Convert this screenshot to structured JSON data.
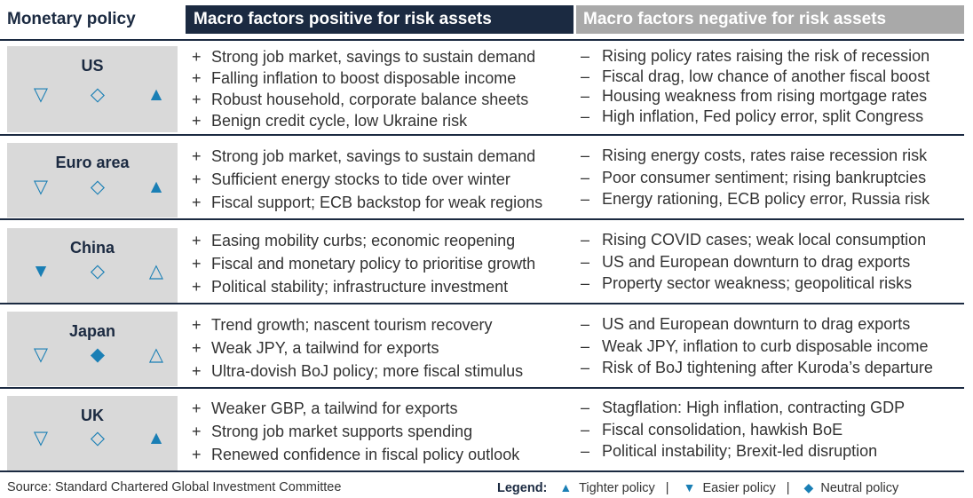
{
  "header": {
    "policy": "Monetary policy",
    "positive": "Macro factors positive for risk assets",
    "negative": "Macro factors negative for risk assets"
  },
  "symbols": {
    "easier_outline": "▽",
    "easier_filled": "▼",
    "neutral_outline": "◇",
    "neutral_filled": "◆",
    "tighter_outline": "△",
    "tighter_filled": "▲"
  },
  "rows": [
    {
      "country": "US",
      "symbols": [
        "▽",
        "◇",
        "▲"
      ],
      "positive": [
        "Strong job market, savings to sustain demand",
        "Falling inflation to boost disposable income",
        "Robust household, corporate balance sheets",
        "Benign credit cycle, low Ukraine risk"
      ],
      "negative": [
        "Rising policy rates raising the risk of recession",
        "Fiscal drag, low chance of another fiscal boost",
        "Housing weakness from rising mortgage rates",
        "High inflation, Fed policy error, split Congress"
      ]
    },
    {
      "country": "Euro area",
      "symbols": [
        "▽",
        "◇",
        "▲"
      ],
      "positive": [
        "Strong job market, savings to sustain demand",
        "Sufficient energy stocks to tide over winter",
        "Fiscal support; ECB backstop for weak regions"
      ],
      "negative": [
        "Rising energy costs, rates raise recession risk",
        "Poor consumer sentiment; rising bankruptcies",
        "Energy rationing, ECB policy error, Russia risk"
      ]
    },
    {
      "country": "China",
      "symbols": [
        "▼",
        "◇",
        "△"
      ],
      "positive": [
        "Easing mobility curbs; economic reopening",
        "Fiscal and monetary policy to prioritise growth",
        "Political stability; infrastructure investment"
      ],
      "negative": [
        "Rising COVID cases; weak local consumption",
        "US and European downturn to drag exports",
        "Property sector weakness; geopolitical risks"
      ]
    },
    {
      "country": "Japan",
      "symbols": [
        "▽",
        "◆",
        "△"
      ],
      "positive": [
        "Trend growth; nascent tourism recovery",
        "Weak JPY, a tailwind for exports",
        "Ultra-dovish BoJ policy; more fiscal stimulus"
      ],
      "negative": [
        "US and European downturn to drag exports",
        "Weak JPY, inflation to curb disposable income",
        "Risk of BoJ tightening after Kuroda’s departure"
      ]
    },
    {
      "country": "UK",
      "symbols": [
        "▽",
        "◇",
        "▲"
      ],
      "positive": [
        "Weaker GBP, a tailwind for exports",
        "Strong job market supports spending",
        "Renewed confidence in fiscal policy outlook"
      ],
      "negative": [
        "Stagflation: High inflation, contracting GDP",
        "Fiscal consolidation, hawkish BoE",
        "Political instability; Brexit-led disruption"
      ]
    }
  ],
  "prefix": {
    "positive": "+",
    "negative": "–"
  },
  "footer": {
    "source": "Source: Standard Chartered Global Investment Committee",
    "legend_title": "Legend:",
    "legend_items": [
      {
        "glyph": "▲",
        "label": "Tighter policy"
      },
      {
        "glyph": "▼",
        "label": "Easier policy"
      },
      {
        "glyph": "◆",
        "label": "Neutral policy"
      }
    ],
    "separator": "|"
  }
}
